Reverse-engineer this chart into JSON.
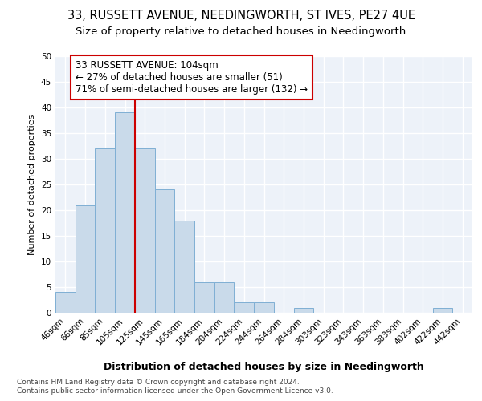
{
  "title1": "33, RUSSETT AVENUE, NEEDINGWORTH, ST IVES, PE27 4UE",
  "title2": "Size of property relative to detached houses in Needingworth",
  "xlabel": "Distribution of detached houses by size in Needingworth",
  "ylabel": "Number of detached properties",
  "footnote1": "Contains HM Land Registry data © Crown copyright and database right 2024.",
  "footnote2": "Contains public sector information licensed under the Open Government Licence v3.0.",
  "categories": [
    "46sqm",
    "66sqm",
    "85sqm",
    "105sqm",
    "125sqm",
    "145sqm",
    "165sqm",
    "184sqm",
    "204sqm",
    "224sqm",
    "244sqm",
    "264sqm",
    "284sqm",
    "303sqm",
    "323sqm",
    "343sqm",
    "363sqm",
    "383sqm",
    "402sqm",
    "422sqm",
    "442sqm"
  ],
  "values": [
    4,
    21,
    32,
    39,
    32,
    24,
    18,
    6,
    6,
    2,
    2,
    0,
    1,
    0,
    0,
    0,
    0,
    0,
    0,
    1,
    0
  ],
  "bar_color": "#c9daea",
  "bar_edge_color": "#7fafd4",
  "vline_color": "#cc0000",
  "vline_index": 3,
  "annotation_text": "33 RUSSETT AVENUE: 104sqm\n← 27% of detached houses are smaller (51)\n71% of semi-detached houses are larger (132) →",
  "annotation_box_color": "#ffffff",
  "annotation_box_edge": "#cc0000",
  "ylim": [
    0,
    50
  ],
  "yticks": [
    0,
    5,
    10,
    15,
    20,
    25,
    30,
    35,
    40,
    45,
    50
  ],
  "bg_color": "#edf2f9",
  "grid_color": "#ffffff",
  "title1_fontsize": 10.5,
  "title2_fontsize": 9.5,
  "xlabel_fontsize": 9,
  "ylabel_fontsize": 8,
  "tick_fontsize": 7.5,
  "annot_fontsize": 8.5
}
